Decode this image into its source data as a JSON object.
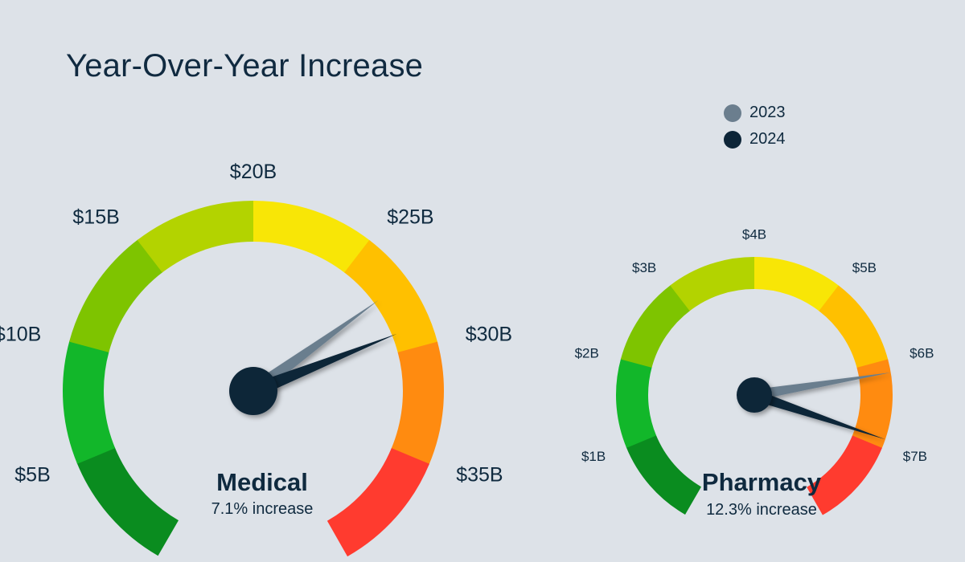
{
  "title": "Year-Over-Year Increase",
  "legend": {
    "items": [
      {
        "label": "2023",
        "color": "#6b7e8e"
      },
      {
        "label": "2024",
        "color": "#0d2538"
      }
    ]
  },
  "colors": {
    "bands": [
      "#0a8c1f",
      "#12b72a",
      "#7ec400",
      "#b3d300",
      "#f8e606",
      "#ffc000",
      "#ff8b10",
      "#ff3b2f"
    ],
    "needle_2023": "#6b7e8e",
    "needle_2024": "#0d2538"
  },
  "chart_data": [
    {
      "type": "gauge",
      "name": "Medical",
      "subtitle": "7.1% increase",
      "range": [
        0,
        40
      ],
      "tick_values": [
        5,
        10,
        15,
        20,
        25,
        30,
        35
      ],
      "tick_labels": [
        "$5B",
        "$10B",
        "$15B",
        "$20B",
        "$25B",
        "$30B",
        "$35B"
      ],
      "series": [
        {
          "name": "2023",
          "value": 27.2
        },
        {
          "name": "2024",
          "value": 29.1
        }
      ]
    },
    {
      "type": "gauge",
      "name": "Pharmacy",
      "subtitle": "12.3% increase",
      "range": [
        0,
        8
      ],
      "tick_values": [
        1,
        2,
        3,
        4,
        5,
        6,
        7
      ],
      "tick_labels": [
        "$1B",
        "$2B",
        "$3B",
        "$4B",
        "$5B",
        "$6B",
        "$7B"
      ],
      "series": [
        {
          "name": "2023",
          "value": 6.15
        },
        {
          "name": "2024",
          "value": 6.9
        }
      ]
    }
  ]
}
